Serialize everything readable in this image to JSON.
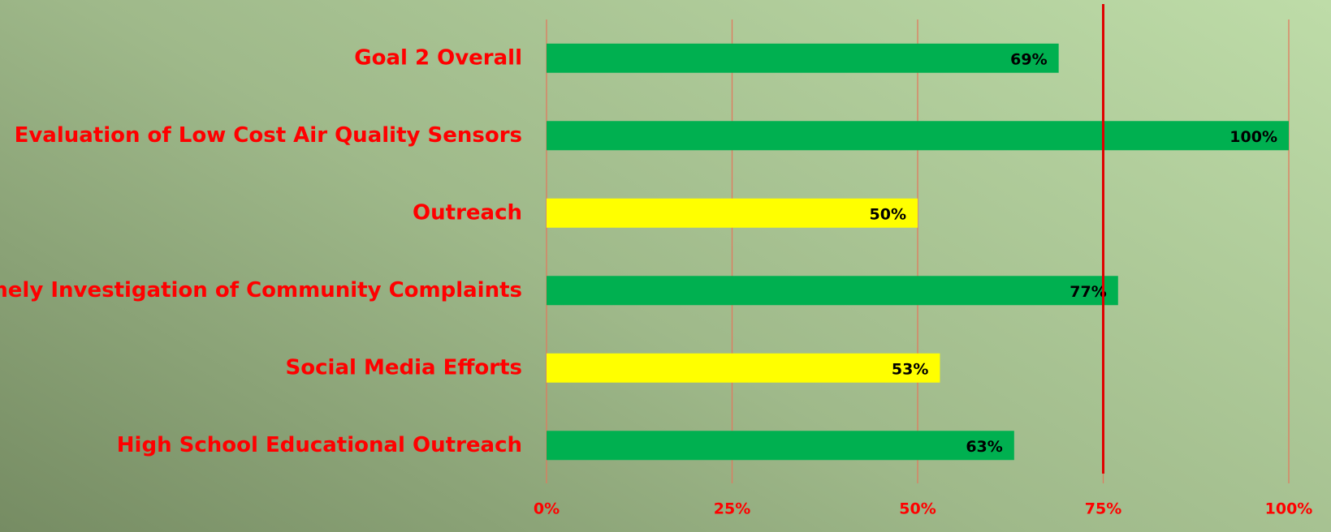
{
  "chart_data": {
    "type": "hbar",
    "categories": [
      "Goal 2 Overall",
      "Evaluation of Low Cost Air Quality Sensors",
      "Outreach",
      "Timely Investigation of Community Complaints",
      "Social Media Efforts",
      "High School Educational Outreach"
    ],
    "values": [
      69,
      100,
      50,
      77,
      53,
      63
    ],
    "value_labels": [
      "69%",
      "100%",
      "50%",
      "77%",
      "53%",
      "63%"
    ],
    "colors": [
      "#00b050",
      "#00b050",
      "#ffff00",
      "#00b050",
      "#ffff00",
      "#00b050"
    ],
    "xlim": [
      0,
      100
    ],
    "xticks": [
      {
        "value": 0,
        "label": "0%"
      },
      {
        "value": 25,
        "label": "25%"
      },
      {
        "value": 50,
        "label": "50%"
      },
      {
        "value": 75,
        "label": "75%"
      },
      {
        "value": 100,
        "label": "100%"
      }
    ],
    "grid": true,
    "grid_color": "#e07a5f",
    "target_line": 75,
    "target_color": "#e00000",
    "label_color": "#ff0000"
  }
}
